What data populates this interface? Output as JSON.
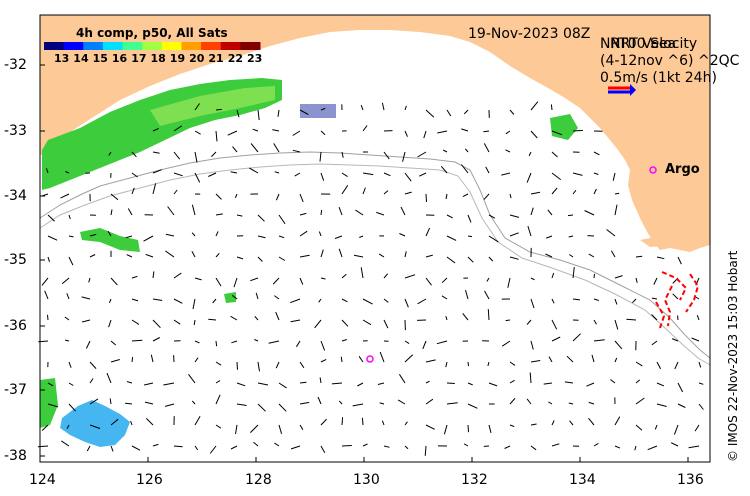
{
  "map": {
    "timestamp": "19-Nov-2023 08Z",
    "colorbar": {
      "title": "4h comp, p50, All Sats",
      "ticks": [
        "13",
        "14",
        "15",
        "16",
        "17",
        "18",
        "19",
        "20",
        "21",
        "22",
        "23"
      ],
      "colors": [
        "#00007f",
        "#0000ff",
        "#0080ff",
        "#00e0ff",
        "#40ff90",
        "#a0ff40",
        "#ffff00",
        "#ffa000",
        "#ff4000",
        "#c00000",
        "#800000"
      ]
    },
    "overlay_label_1": "NRT00 Sea",
    "overlay_label_2": "NRT Velocity",
    "overlay_label_3": "(4-12nov ^6) ^2QC",
    "overlay_label_4": "0.5m/s (1kt 24h)",
    "argo_label": "Argo",
    "credit": "© IMOS 22-Nov-2023 15:03 Hobart",
    "lat_ticks": [
      "-32",
      "-33",
      "-34",
      "-35",
      "-36",
      "-37",
      "-38"
    ],
    "lon_ticks": [
      "124",
      "126",
      "128",
      "130",
      "132",
      "134",
      "136"
    ],
    "colors": {
      "land": "#fdc996",
      "argo": "#ff00ff",
      "drifter": "#ff0000",
      "bathy": "#a0a0a0"
    }
  }
}
